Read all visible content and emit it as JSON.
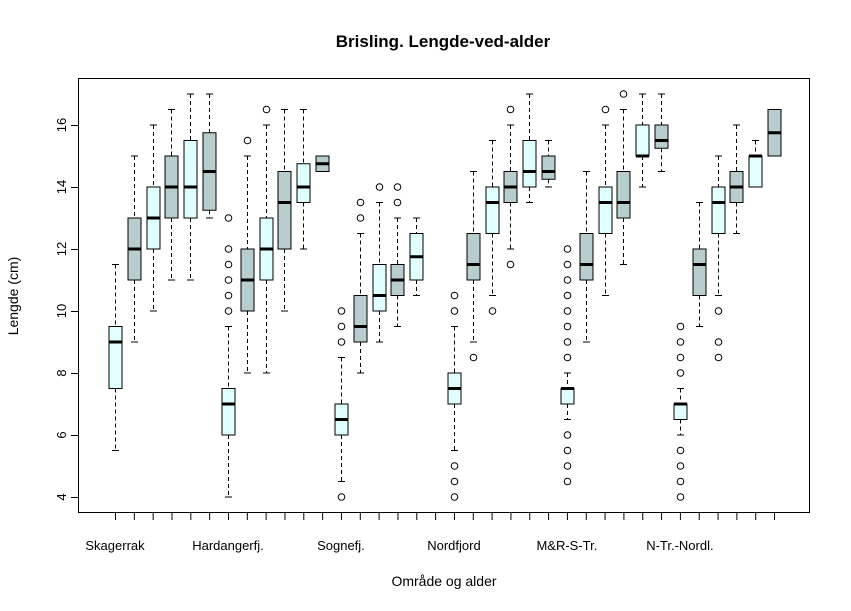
{
  "chart_data": {
    "type": "boxplot",
    "title": "Brisling. Lengde-ved-alder",
    "xlabel": "Område og alder",
    "ylabel": "Lengde (cm)",
    "ylim": [
      3.5,
      17.5
    ],
    "yticks": [
      4,
      6,
      8,
      10,
      12,
      14,
      16
    ],
    "group_labels": [
      "Skagerrak",
      "Hardangerfj.",
      "Sognefj.",
      "Nordfjord",
      "M&R-S-Tr.",
      "N-Tr.-Nordl."
    ],
    "boxes_per_group": 6,
    "fill_colors": [
      "#e0ffff",
      "#b8cdcd"
    ],
    "boxes": [
      {
        "min": 5.5,
        "q1": 7.5,
        "median": 9,
        "q3": 9.5,
        "max": 11.5,
        "outliers": []
      },
      {
        "min": 9,
        "q1": 11,
        "median": 12,
        "q3": 13,
        "max": 15,
        "outliers": []
      },
      {
        "min": 10,
        "q1": 12,
        "median": 13,
        "q3": 14,
        "max": 16,
        "outliers": []
      },
      {
        "min": 11,
        "q1": 13,
        "median": 14,
        "q3": 15,
        "max": 16.5,
        "outliers": []
      },
      {
        "min": 11,
        "q1": 13,
        "median": 14,
        "q3": 15.5,
        "max": 17,
        "outliers": []
      },
      {
        "min": 13,
        "q1": 13.25,
        "median": 14.5,
        "q3": 15.75,
        "max": 17,
        "outliers": []
      },
      {
        "min": 4,
        "q1": 6,
        "median": 7,
        "q3": 7.5,
        "max": 9.5,
        "outliers": [
          10,
          10.5,
          11,
          11.5,
          12,
          13
        ]
      },
      {
        "min": 8,
        "q1": 10,
        "median": 11,
        "q3": 12,
        "max": 15,
        "outliers": [
          15.5
        ]
      },
      {
        "min": 8,
        "q1": 11,
        "median": 12,
        "q3": 13,
        "max": 16,
        "outliers": [
          16.5
        ]
      },
      {
        "min": 10,
        "q1": 12,
        "median": 13.5,
        "q3": 14.5,
        "max": 16.5,
        "outliers": []
      },
      {
        "min": 12,
        "q1": 13.5,
        "median": 14,
        "q3": 14.75,
        "max": 16.5,
        "outliers": []
      },
      {
        "min": 14.5,
        "q1": 14.5,
        "median": 14.75,
        "q3": 15,
        "max": 15,
        "outliers": []
      },
      {
        "min": 4.5,
        "q1": 6,
        "median": 6.5,
        "q3": 7,
        "max": 8.5,
        "outliers": [
          4,
          9,
          9.5,
          10
        ]
      },
      {
        "min": 8,
        "q1": 9,
        "median": 9.5,
        "q3": 10.5,
        "max": 12.5,
        "outliers": [
          13,
          13.5
        ]
      },
      {
        "min": 9,
        "q1": 10,
        "median": 10.5,
        "q3": 11.5,
        "max": 13.5,
        "outliers": [
          14
        ]
      },
      {
        "min": 9.5,
        "q1": 10.5,
        "median": 11,
        "q3": 11.5,
        "max": 13,
        "outliers": [
          13.5,
          14
        ]
      },
      {
        "min": 10.5,
        "q1": 11,
        "median": 11.75,
        "q3": 12.5,
        "max": 13,
        "outliers": []
      },
      null,
      {
        "min": 5.5,
        "q1": 7,
        "median": 7.5,
        "q3": 8,
        "max": 9.5,
        "outliers": [
          4,
          4.5,
          5,
          10,
          10.5
        ]
      },
      {
        "min": 9,
        "q1": 11,
        "median": 11.5,
        "q3": 12.5,
        "max": 14.5,
        "outliers": [
          8.5
        ]
      },
      {
        "min": 10.5,
        "q1": 12.5,
        "median": 13.5,
        "q3": 14,
        "max": 15.5,
        "outliers": [
          10
        ]
      },
      {
        "min": 12,
        "q1": 13.5,
        "median": 14,
        "q3": 14.5,
        "max": 16,
        "outliers": [
          11.5,
          16.5
        ]
      },
      {
        "min": 13.5,
        "q1": 14,
        "median": 14.5,
        "q3": 15.5,
        "max": 17,
        "outliers": []
      },
      {
        "min": 14,
        "q1": 14.25,
        "median": 14.5,
        "q3": 15,
        "max": 15.5,
        "outliers": []
      },
      {
        "min": 6.5,
        "q1": 7,
        "median": 7.5,
        "q3": 7.5,
        "max": 8,
        "outliers": [
          4.5,
          5,
          5.5,
          6,
          8.5,
          9,
          9.5,
          10,
          10.5,
          11,
          11.5,
          12
        ]
      },
      {
        "min": 9,
        "q1": 11,
        "median": 11.5,
        "q3": 12.5,
        "max": 14.5,
        "outliers": []
      },
      {
        "min": 10.5,
        "q1": 12.5,
        "median": 13.5,
        "q3": 14,
        "max": 16,
        "outliers": [
          16.5
        ]
      },
      {
        "min": 11.5,
        "q1": 13,
        "median": 13.5,
        "q3": 14.5,
        "max": 16.5,
        "outliers": [
          17
        ]
      },
      {
        "min": 14,
        "q1": 15,
        "median": 15,
        "q3": 16,
        "max": 17,
        "outliers": []
      },
      {
        "min": 14.5,
        "q1": 15.25,
        "median": 15.5,
        "q3": 16,
        "max": 17,
        "outliers": []
      },
      {
        "min": 6,
        "q1": 6.5,
        "median": 7,
        "q3": 7,
        "max": 7.5,
        "outliers": [
          4,
          4.5,
          5,
          5.5,
          8,
          8.5,
          9,
          9.5
        ]
      },
      {
        "min": 9.5,
        "q1": 10.5,
        "median": 11.5,
        "q3": 12,
        "max": 13.5,
        "outliers": []
      },
      {
        "min": 10.5,
        "q1": 12.5,
        "median": 13.5,
        "q3": 14,
        "max": 15,
        "outliers": [
          8.5,
          9,
          10
        ]
      },
      {
        "min": 12.5,
        "q1": 13.5,
        "median": 14,
        "q3": 14.5,
        "max": 16,
        "outliers": []
      },
      {
        "min": 14,
        "q1": 14,
        "median": 15,
        "q3": 15,
        "max": 15.5,
        "outliers": []
      },
      {
        "min": 15,
        "q1": 15,
        "median": 15.75,
        "q3": 16.5,
        "max": 16.5,
        "outliers": []
      }
    ]
  }
}
